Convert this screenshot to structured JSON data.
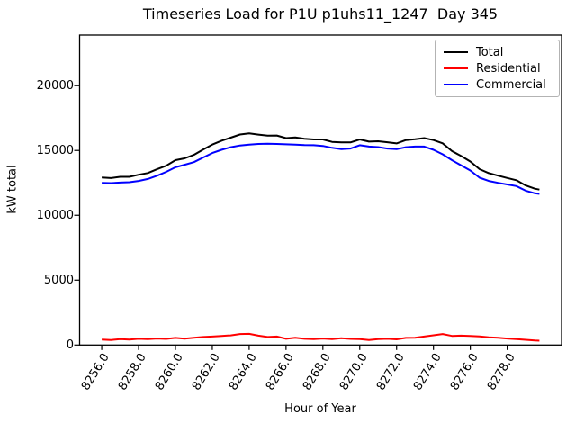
{
  "title": "Timeseries Load for P1U p1uhs11_1247  Day 345",
  "chart_data": {
    "type": "line",
    "title": "Timeseries Load for P1U p1uhs11_1247  Day 345",
    "xlabel": "Hour of Year",
    "ylabel": "kW total",
    "xlim": [
      8254.8,
      8280.95
    ],
    "ylim": [
      0,
      23900
    ],
    "grid": false,
    "legend_position": "upper right",
    "xticks": {
      "values": [
        8256,
        8258,
        8260,
        8262,
        8264,
        8266,
        8268,
        8270,
        8272,
        8274,
        8276,
        8278
      ],
      "labels": [
        "8256.0",
        "8258.0",
        "8260.0",
        "8262.0",
        "8264.0",
        "8266.0",
        "8268.0",
        "8270.0",
        "8272.0",
        "8274.0",
        "8276.0",
        "8278.0"
      ]
    },
    "yticks": {
      "values": [
        0,
        5000,
        10000,
        15000,
        20000
      ],
      "labels": [
        "0",
        "5000",
        "10000",
        "15000",
        "20000"
      ]
    },
    "x": [
      8256.0,
      8256.5,
      8257.0,
      8257.5,
      8258.0,
      8258.5,
      8259.0,
      8259.5,
      8260.0,
      8260.5,
      8261.0,
      8261.5,
      8262.0,
      8262.5,
      8263.0,
      8263.5,
      8264.0,
      8264.5,
      8265.0,
      8265.5,
      8266.0,
      8266.5,
      8267.0,
      8267.5,
      8268.0,
      8268.5,
      8269.0,
      8269.5,
      8270.0,
      8270.5,
      8271.0,
      8271.5,
      8272.0,
      8272.5,
      8273.0,
      8273.5,
      8274.0,
      8274.5,
      8275.0,
      8275.5,
      8276.0,
      8276.5,
      8277.0,
      8277.5,
      8278.0,
      8278.5,
      8279.0,
      8279.5,
      8279.75
    ],
    "series": [
      {
        "name": "Total",
        "color": "#000000",
        "values": [
          12920,
          12870,
          12970,
          12970,
          13130,
          13260,
          13550,
          13820,
          14250,
          14390,
          14660,
          15070,
          15450,
          15750,
          15990,
          16230,
          16310,
          16220,
          16140,
          16150,
          15950,
          16010,
          15900,
          15850,
          15850,
          15660,
          15620,
          15620,
          15850,
          15680,
          15710,
          15630,
          15540,
          15800,
          15860,
          15950,
          15800,
          15550,
          14950,
          14570,
          14150,
          13560,
          13250,
          13060,
          12880,
          12700,
          12300,
          12050,
          11980
        ]
      },
      {
        "name": "Residential",
        "color": "#ff0000",
        "values": [
          420,
          390,
          450,
          420,
          480,
          460,
          500,
          470,
          550,
          490,
          560,
          620,
          650,
          700,
          740,
          850,
          860,
          720,
          620,
          650,
          480,
          560,
          480,
          450,
          500,
          460,
          520,
          470,
          450,
          380,
          450,
          480,
          440,
          550,
          560,
          650,
          750,
          850,
          700,
          720,
          700,
          660,
          600,
          560,
          500,
          450,
          400,
          350,
          330
        ]
      },
      {
        "name": "Commercial",
        "color": "#0000ff",
        "values": [
          12500,
          12480,
          12520,
          12550,
          12650,
          12800,
          13050,
          13350,
          13700,
          13900,
          14100,
          14450,
          14800,
          15050,
          15250,
          15380,
          15450,
          15500,
          15520,
          15500,
          15470,
          15450,
          15420,
          15400,
          15350,
          15200,
          15100,
          15150,
          15400,
          15300,
          15260,
          15150,
          15100,
          15250,
          15300,
          15300,
          15050,
          14700,
          14250,
          13850,
          13450,
          12900,
          12650,
          12500,
          12380,
          12250,
          11900,
          11700,
          11650
        ]
      }
    ]
  }
}
